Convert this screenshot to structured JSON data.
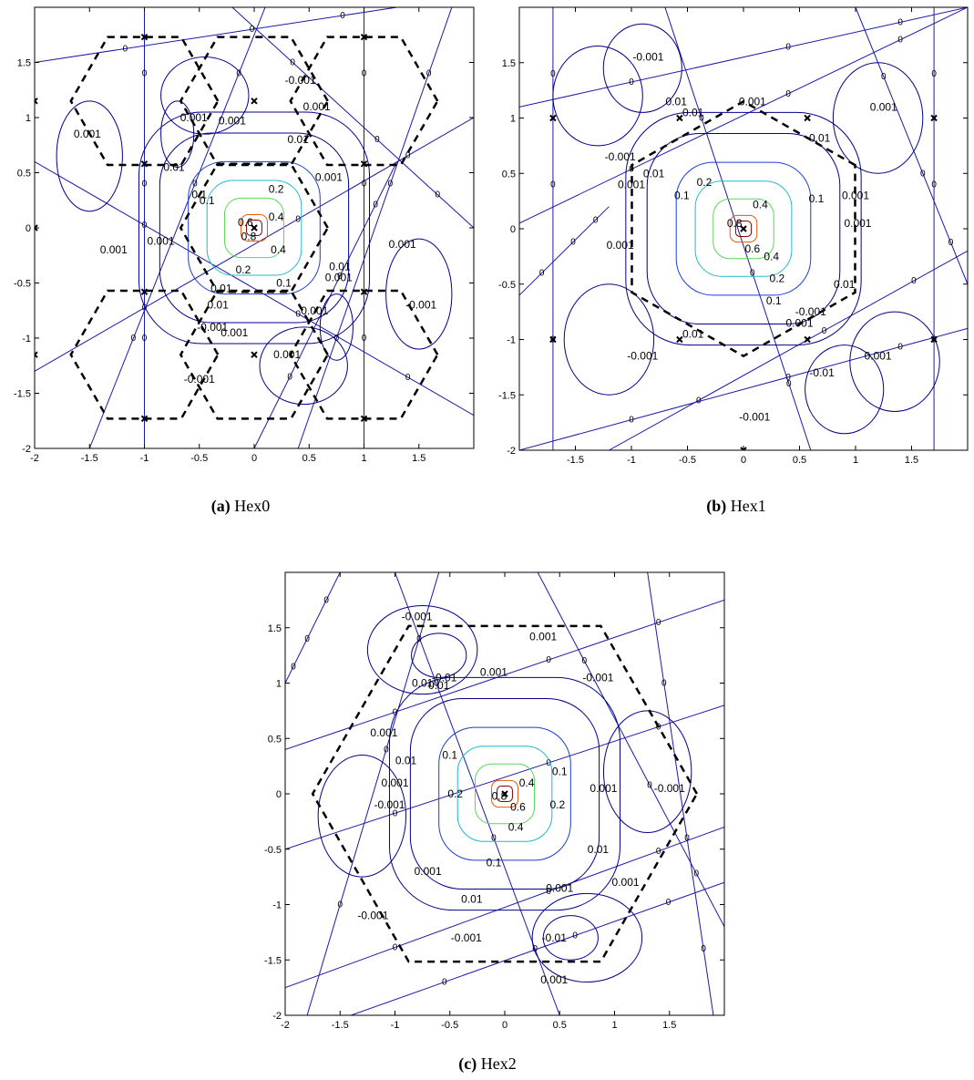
{
  "figure": {
    "panels": [
      {
        "id": "a",
        "tag": "(a)",
        "name": "Hex0"
      },
      {
        "id": "b",
        "tag": "(b)",
        "name": "Hex1"
      },
      {
        "id": "c",
        "tag": "(c)",
        "name": "Hex2"
      }
    ]
  },
  "chart_data": [
    {
      "type": "contour",
      "panel": "(a) Hex0",
      "title": "",
      "xlabel": "",
      "ylabel": "",
      "xlim": [
        -2,
        2
      ],
      "ylim": [
        -2,
        2
      ],
      "xticks": [
        -2,
        -1.5,
        -1,
        -0.5,
        0,
        0.5,
        1,
        1.5
      ],
      "yticks": [
        -2,
        -1.5,
        -1,
        -0.5,
        0,
        0.5,
        1,
        1.5
      ],
      "grid": false,
      "contour_levels": [
        -0.001,
        0,
        0.001,
        0.01,
        0.1,
        0.2,
        0.4,
        0.6,
        0.8
      ],
      "contour_labels": [
        {
          "text": "0.8",
          "x": -0.05,
          "y": -0.08
        },
        {
          "text": "0.6",
          "x": -0.08,
          "y": 0.05
        },
        {
          "text": "0.4",
          "x": 0.2,
          "y": 0.1
        },
        {
          "text": "0.4",
          "x": 0.22,
          "y": -0.2
        },
        {
          "text": "0.2",
          "x": -0.1,
          "y": -0.38
        },
        {
          "text": "0.2",
          "x": 0.2,
          "y": 0.35
        },
        {
          "text": "0.1",
          "x": -0.43,
          "y": 0.25
        },
        {
          "text": "0.1",
          "x": 0.27,
          "y": -0.5
        },
        {
          "text": "0.01",
          "x": -0.73,
          "y": 0.55
        },
        {
          "text": "0.01",
          "x": 0.4,
          "y": 0.8
        },
        {
          "text": "0.01",
          "x": -0.3,
          "y": -0.55
        },
        {
          "text": "0.01",
          "x": 0.78,
          "y": -0.35
        },
        {
          "text": "0.01",
          "x": -0.33,
          "y": -0.7
        },
        {
          "text": "0.001",
          "x": -0.2,
          "y": 0.97
        },
        {
          "text": "0.001",
          "x": 0.57,
          "y": 1.1
        },
        {
          "text": "0.001",
          "x": 0.68,
          "y": 0.46
        },
        {
          "text": "0.001",
          "x": -0.85,
          "y": -0.12
        },
        {
          "text": "0.001",
          "x": 0.77,
          "y": -0.45
        },
        {
          "text": "0.001",
          "x": -0.18,
          "y": -0.95
        },
        {
          "text": "0.001",
          "x": 1.35,
          "y": -0.15
        },
        {
          "text": "0.001",
          "x": -1.52,
          "y": 0.85
        },
        {
          "text": "0.001",
          "x": -1.28,
          "y": -0.2
        },
        {
          "text": "-0.001",
          "x": 0.42,
          "y": 1.34
        },
        {
          "text": "-0.001",
          "x": -0.38,
          "y": -0.9
        },
        {
          "text": "-0.001",
          "x": -0.5,
          "y": -1.37
        },
        {
          "text": "-0.001",
          "x": 1.52,
          "y": -0.7
        },
        {
          "text": "0.001",
          "x": 0.55,
          "y": -0.75
        },
        {
          "text": "0.001",
          "x": 0.3,
          "y": -1.15
        },
        {
          "text": "0.1",
          "x": -0.5,
          "y": 0.3
        },
        {
          "text": "0.001",
          "x": -0.55,
          "y": 1.0
        }
      ],
      "zero_lines": [
        {
          "p1": [
            -2,
            0.6
          ],
          "p2": [
            2,
            -1.7
          ]
        },
        {
          "p1": [
            -2,
            -1.3
          ],
          "p2": [
            2,
            1.0
          ]
        },
        {
          "p1": [
            -1.5,
            -2
          ],
          "p2": [
            0.1,
            2
          ]
        },
        {
          "p1": [
            0.4,
            -2
          ],
          "p2": [
            1.8,
            2
          ]
        },
        {
          "p1": [
            -1.0,
            -2
          ],
          "p2": [
            -1.0,
            2
          ]
        },
        {
          "p1": [
            1.0,
            -2
          ],
          "p2": [
            1.0,
            2
          ]
        },
        {
          "p1": [
            -0.2,
            2
          ],
          "p2": [
            2,
            0.0
          ]
        },
        {
          "p1": [
            -2,
            1.5
          ],
          "p2": [
            1.3,
            2
          ]
        },
        {
          "p1": [
            0.0,
            -2
          ],
          "p2": [
            1.3,
            0.6
          ]
        }
      ],
      "markers": [
        {
          "x": 0,
          "y": 0
        },
        {
          "x": -1,
          "y": 1.73
        },
        {
          "x": -1,
          "y": 0.58
        },
        {
          "x": -1,
          "y": -0.58
        },
        {
          "x": -1,
          "y": -1.73
        },
        {
          "x": 1,
          "y": 1.73
        },
        {
          "x": 1,
          "y": 0.58
        },
        {
          "x": 1,
          "y": -0.58
        },
        {
          "x": 1,
          "y": -1.73
        },
        {
          "x": -2,
          "y": 1.15
        },
        {
          "x": -2,
          "y": 0
        },
        {
          "x": -2,
          "y": -1.15
        },
        {
          "x": 0,
          "y": 1.15
        },
        {
          "x": 0,
          "y": -1.15
        }
      ]
    },
    {
      "type": "contour",
      "panel": "(b) Hex1",
      "title": "",
      "xlabel": "",
      "ylabel": "",
      "xlim": [
        -2,
        2
      ],
      "ylim": [
        -2,
        2
      ],
      "xticks": [
        -1.5,
        -1,
        -0.5,
        0,
        0.5,
        1,
        1.5
      ],
      "yticks": [
        -2,
        -1.5,
        -1,
        -0.5,
        0,
        0.5,
        1,
        1.5
      ],
      "grid": false,
      "contour_levels": [
        -0.01,
        -0.001,
        0,
        0.001,
        0.01,
        0.1,
        0.2,
        0.4,
        0.6,
        0.8
      ],
      "contour_labels": [
        {
          "text": "0.8",
          "x": -0.08,
          "y": 0.05
        },
        {
          "text": "0.6",
          "x": 0.08,
          "y": -0.18
        },
        {
          "text": "0.4",
          "x": 0.15,
          "y": 0.22
        },
        {
          "text": "0.4",
          "x": 0.25,
          "y": -0.25
        },
        {
          "text": "0.2",
          "x": -0.35,
          "y": 0.42
        },
        {
          "text": "0.2",
          "x": 0.3,
          "y": -0.45
        },
        {
          "text": "0.1",
          "x": -0.55,
          "y": 0.3
        },
        {
          "text": "0.1",
          "x": 0.65,
          "y": 0.27
        },
        {
          "text": "0.1",
          "x": 0.27,
          "y": -0.65
        },
        {
          "text": "0.01",
          "x": -0.8,
          "y": 0.5
        },
        {
          "text": "0.01",
          "x": 0.68,
          "y": 0.82
        },
        {
          "text": "0.01",
          "x": 0.9,
          "y": -0.5
        },
        {
          "text": "0.01",
          "x": -0.45,
          "y": -0.95
        },
        {
          "text": "0.01",
          "x": -0.45,
          "y": 1.05
        },
        {
          "text": "0.001",
          "x": -1.0,
          "y": 0.4
        },
        {
          "text": "0.001",
          "x": 0.08,
          "y": 1.15
        },
        {
          "text": "0.001",
          "x": 1.0,
          "y": 0.3
        },
        {
          "text": "0.001",
          "x": -1.1,
          "y": -0.15
        },
        {
          "text": "0.001",
          "x": 1.25,
          "y": 1.1
        },
        {
          "text": "0.001",
          "x": 1.2,
          "y": -1.15
        },
        {
          "text": "0.001",
          "x": 0.5,
          "y": -0.85
        },
        {
          "text": "-0.001",
          "x": -0.85,
          "y": 1.55
        },
        {
          "text": "-0.001",
          "x": -1.1,
          "y": 0.65
        },
        {
          "text": "-0.001",
          "x": -0.9,
          "y": -1.15
        },
        {
          "text": "-0.001",
          "x": 0.1,
          "y": -1.7
        },
        {
          "text": "-0.001",
          "x": 0.6,
          "y": -0.75
        },
        {
          "text": "0.01",
          "x": -0.6,
          "y": 1.15
        },
        {
          "text": "-0.01",
          "x": 0.7,
          "y": -1.3
        },
        {
          "text": "0.001",
          "x": 1.02,
          "y": 0.05
        }
      ],
      "zero_lines": [
        {
          "p1": [
            -2,
            1.1
          ],
          "p2": [
            2,
            2.0
          ]
        },
        {
          "p1": [
            -2,
            0.05
          ],
          "p2": [
            2,
            2.0
          ]
        },
        {
          "p1": [
            -1.2,
            -2
          ],
          "p2": [
            2,
            -0.2
          ]
        },
        {
          "p1": [
            -2,
            -2
          ],
          "p2": [
            2,
            -0.9
          ]
        },
        {
          "p1": [
            -1.7,
            -2
          ],
          "p2": [
            -1.7,
            2
          ]
        },
        {
          "p1": [
            1.7,
            -2
          ],
          "p2": [
            1.7,
            2
          ]
        },
        {
          "p1": [
            -0.7,
            2
          ],
          "p2": [
            0.6,
            -2
          ]
        },
        {
          "p1": [
            1.0,
            2
          ],
          "p2": [
            2,
            -0.5
          ]
        },
        {
          "p1": [
            -2,
            -0.6
          ],
          "p2": [
            -1.2,
            0.2
          ]
        }
      ],
      "markers": [
        {
          "x": 0,
          "y": 0
        },
        {
          "x": -1.7,
          "y": 1.0
        },
        {
          "x": -1.7,
          "y": -1.0
        },
        {
          "x": 1.7,
          "y": 1.0
        },
        {
          "x": 1.7,
          "y": -1.0
        },
        {
          "x": 0,
          "y": -2
        },
        {
          "x": -0.57,
          "y": 1.0
        },
        {
          "x": 0.57,
          "y": 1.0
        },
        {
          "x": -0.57,
          "y": -1.0
        },
        {
          "x": 0.57,
          "y": -1.0
        }
      ]
    },
    {
      "type": "contour",
      "panel": "(c) Hex2",
      "title": "",
      "xlabel": "",
      "ylabel": "",
      "xlim": [
        -2,
        2
      ],
      "ylim": [
        -2,
        2
      ],
      "xticks": [
        -2,
        -1.5,
        -1,
        -0.5,
        0,
        0.5,
        1,
        1.5
      ],
      "yticks": [
        -2,
        -1.5,
        -1,
        -0.5,
        0,
        0.5,
        1,
        1.5
      ],
      "grid": false,
      "contour_levels": [
        -0.01,
        -0.001,
        0,
        0.001,
        0.01,
        0.1,
        0.2,
        0.4,
        0.6,
        0.8
      ],
      "contour_labels": [
        {
          "text": "0.8",
          "x": -0.05,
          "y": -0.02
        },
        {
          "text": "0.6",
          "x": 0.12,
          "y": -0.12
        },
        {
          "text": "0.4",
          "x": 0.2,
          "y": 0.1
        },
        {
          "text": "0.4",
          "x": 0.1,
          "y": -0.3
        },
        {
          "text": "0.2",
          "x": -0.45,
          "y": 0.0
        },
        {
          "text": "0.2",
          "x": 0.48,
          "y": -0.1
        },
        {
          "text": "0.1",
          "x": -0.5,
          "y": 0.35
        },
        {
          "text": "0.1",
          "x": 0.5,
          "y": 0.2
        },
        {
          "text": "0.1",
          "x": -0.1,
          "y": -0.62
        },
        {
          "text": "0.01",
          "x": -0.9,
          "y": 0.3
        },
        {
          "text": "0.01",
          "x": 0.85,
          "y": -0.5
        },
        {
          "text": "0.01",
          "x": -0.3,
          "y": -0.95
        },
        {
          "text": "0.01",
          "x": -0.6,
          "y": 0.98
        },
        {
          "text": "0.001",
          "x": -1.0,
          "y": 0.1
        },
        {
          "text": "0.001",
          "x": 0.35,
          "y": 1.42
        },
        {
          "text": "0.001",
          "x": -0.1,
          "y": 1.1
        },
        {
          "text": "0.001",
          "x": 0.9,
          "y": 0.05
        },
        {
          "text": "0.001",
          "x": -1.1,
          "y": 0.55
        },
        {
          "text": "0.001",
          "x": 0.5,
          "y": -0.85
        },
        {
          "text": "0.001",
          "x": -0.7,
          "y": -0.7
        },
        {
          "text": "0.001",
          "x": 0.45,
          "y": -1.68
        },
        {
          "text": "-0.001",
          "x": -0.8,
          "y": 1.6
        },
        {
          "text": "-0.001",
          "x": 0.85,
          "y": 1.05
        },
        {
          "text": "-0.001",
          "x": -1.05,
          "y": -0.1
        },
        {
          "text": "-0.001",
          "x": 1.5,
          "y": 0.05
        },
        {
          "text": "-0.001",
          "x": -1.2,
          "y": -1.1
        },
        {
          "text": "-0.001",
          "x": -0.35,
          "y": -1.3
        },
        {
          "text": "-0.01",
          "x": -0.55,
          "y": 1.05
        },
        {
          "text": "-0.01",
          "x": 0.45,
          "y": -1.3
        },
        {
          "text": "0.001",
          "x": 1.1,
          "y": -0.8
        },
        {
          "text": "0.01",
          "x": -0.75,
          "y": 1.0
        }
      ],
      "zero_lines": [
        {
          "p1": [
            -2,
            0.4
          ],
          "p2": [
            2,
            1.75
          ]
        },
        {
          "p1": [
            -2,
            -0.5
          ],
          "p2": [
            2,
            0.8
          ]
        },
        {
          "p1": [
            -2,
            -1.75
          ],
          "p2": [
            2,
            -0.3
          ]
        },
        {
          "p1": [
            -1.4,
            -2
          ],
          "p2": [
            2,
            -0.8
          ]
        },
        {
          "p1": [
            -1.0,
            2
          ],
          "p2": [
            0.5,
            -2
          ]
        },
        {
          "p1": [
            0.3,
            2
          ],
          "p2": [
            2,
            -1.2
          ]
        },
        {
          "p1": [
            -1.8,
            -2
          ],
          "p2": [
            -0.6,
            2
          ]
        },
        {
          "p1": [
            1.3,
            2
          ],
          "p2": [
            1.9,
            -2
          ]
        },
        {
          "p1": [
            -1.5,
            2
          ],
          "p2": [
            -2,
            1.0
          ]
        }
      ],
      "markers": [
        {
          "x": 0,
          "y": 0
        }
      ]
    }
  ]
}
